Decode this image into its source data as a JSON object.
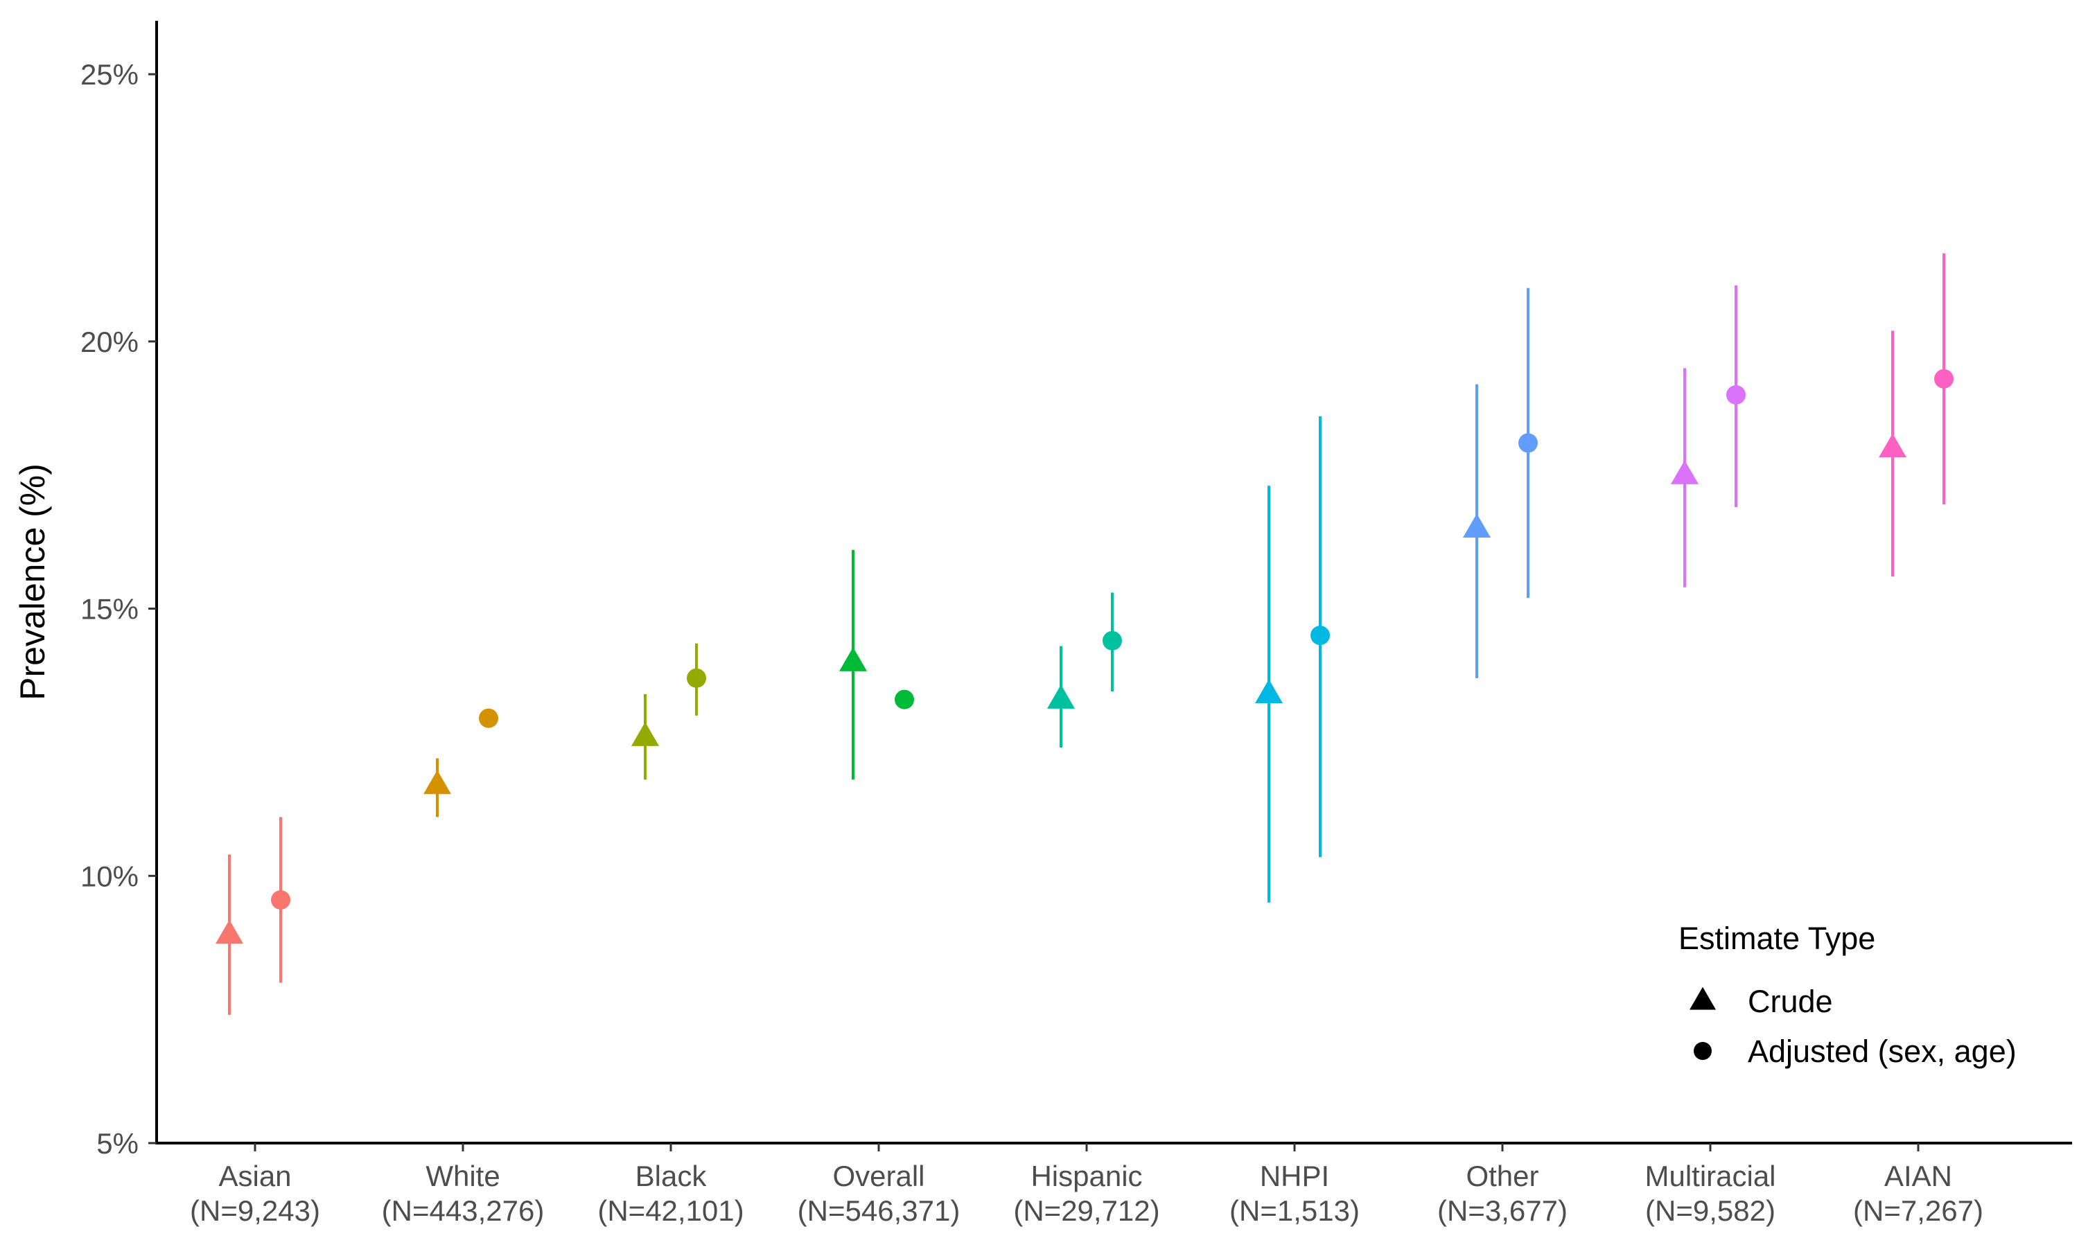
{
  "chart_data": {
    "type": "scatter",
    "subtype": "point-range",
    "title": "",
    "xlabel": "",
    "ylabel": "Prevalence (%)",
    "ylim": [
      5,
      26
    ],
    "y_ticks": [
      "5%",
      "10%",
      "15%",
      "20%",
      "25%"
    ],
    "y_tick_values": [
      5,
      10,
      15,
      20,
      25
    ],
    "grid": false,
    "legend": {
      "title": "Estimate Type",
      "placement": "bottom-right",
      "entries": [
        {
          "label": "Crude",
          "shape": "triangle"
        },
        {
          "label": "Adjusted (sex, age)",
          "shape": "circle"
        }
      ]
    },
    "categories": [
      {
        "name": "Asian",
        "n_label": "(N=9,243)",
        "color": "#F8766D"
      },
      {
        "name": "White",
        "n_label": "(N=443,276)",
        "color": "#D39200"
      },
      {
        "name": "Black",
        "n_label": "(N=42,101)",
        "color": "#93AA00"
      },
      {
        "name": "Overall",
        "n_label": "(N=546,371)",
        "color": "#00BA38"
      },
      {
        "name": "Hispanic",
        "n_label": "(N=29,712)",
        "color": "#00C19F"
      },
      {
        "name": "NHPI",
        "n_label": "(N=1,513)",
        "color": "#00B9E3"
      },
      {
        "name": "Other",
        "n_label": "(N=3,677)",
        "color": "#619CFF"
      },
      {
        "name": "Multiracial",
        "n_label": "(N=9,582)",
        "color": "#DB72FB"
      },
      {
        "name": "AIAN",
        "n_label": "(N=7,267)",
        "color": "#FF61C3"
      }
    ],
    "series": [
      {
        "name": "Crude",
        "shape": "triangle",
        "values": [
          8.9,
          11.7,
          12.6,
          14.0,
          13.3,
          13.4,
          16.5,
          17.5,
          18.0
        ],
        "lower": [
          7.4,
          11.1,
          11.8,
          11.8,
          12.4,
          9.5,
          13.7,
          15.4,
          15.6
        ],
        "upper": [
          10.4,
          12.2,
          13.4,
          16.1,
          14.3,
          17.3,
          19.2,
          19.5,
          20.2
        ]
      },
      {
        "name": "Adjusted (sex, age)",
        "shape": "circle",
        "values": [
          9.55,
          12.95,
          13.7,
          13.3,
          14.4,
          14.5,
          18.1,
          19.0,
          19.3
        ],
        "lower": [
          8.0,
          12.85,
          13.0,
          13.2,
          13.45,
          10.35,
          15.2,
          16.9,
          16.95
        ],
        "upper": [
          11.1,
          13.05,
          14.35,
          13.4,
          15.3,
          18.6,
          21.0,
          21.05,
          21.65
        ]
      }
    ]
  }
}
